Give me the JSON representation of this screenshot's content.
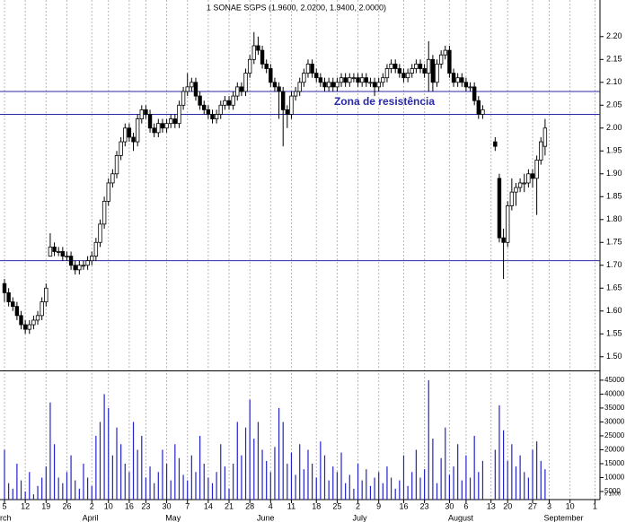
{
  "chart_data": {
    "type": "candlestick",
    "title": "1 SONAE SGPS (1.9600, 2.0200, 1.9400, 2.0000)",
    "annotation": "Zona de resistência",
    "up_color": "#ffffff",
    "down_color": "#000000",
    "volume_color": "#2323c8",
    "hline_color": "#2a2aa8",
    "hlines": [
      2.08,
      2.03,
      1.71
    ],
    "xlim": [
      -1.08,
      143.2
    ],
    "xticks": [
      {
        "value": 0,
        "label": "5"
      },
      {
        "value": 5,
        "label": "12"
      },
      {
        "value": 10,
        "label": "19"
      },
      {
        "value": 15,
        "label": "26"
      },
      {
        "value": 21,
        "label": "2"
      },
      {
        "value": 25,
        "label": "10"
      },
      {
        "value": 30,
        "label": "16"
      },
      {
        "value": 34,
        "label": "23"
      },
      {
        "value": 39,
        "label": "30"
      },
      {
        "value": 44,
        "label": "7"
      },
      {
        "value": 49,
        "label": "14"
      },
      {
        "value": 54,
        "label": "21"
      },
      {
        "value": 59,
        "label": "28"
      },
      {
        "value": 64,
        "label": "4"
      },
      {
        "value": 69,
        "label": "11"
      },
      {
        "value": 75,
        "label": "18"
      },
      {
        "value": 80,
        "label": "25"
      },
      {
        "value": 85,
        "label": "2"
      },
      {
        "value": 90,
        "label": "9"
      },
      {
        "value": 96,
        "label": "16"
      },
      {
        "value": 101,
        "label": "23"
      },
      {
        "value": 107,
        "label": "30"
      },
      {
        "value": 111,
        "label": "6"
      },
      {
        "value": 117,
        "label": "13"
      },
      {
        "value": 121,
        "label": "20"
      },
      {
        "value": 127,
        "label": "27"
      },
      {
        "value": 131,
        "label": "3"
      },
      {
        "value": 136,
        "label": "10"
      },
      {
        "value": 142,
        "label": "1"
      }
    ],
    "months": [
      {
        "value": 0,
        "label": "rch"
      },
      {
        "value": 20,
        "label": "April"
      },
      {
        "value": 40,
        "label": "May"
      },
      {
        "value": 62,
        "label": "June"
      },
      {
        "value": 85,
        "label": "July"
      },
      {
        "value": 108,
        "label": "August"
      },
      {
        "value": 131,
        "label": "September"
      }
    ],
    "ylim": [
      1.475,
      2.28
    ],
    "yticks": [
      {
        "value": 2.2,
        "label": "2.20"
      },
      {
        "value": 2.15,
        "label": "2.15"
      },
      {
        "value": 2.1,
        "label": "2.10"
      },
      {
        "value": 2.05,
        "label": "2.05"
      },
      {
        "value": 2.0,
        "label": "2.00"
      },
      {
        "value": 1.95,
        "label": "1.95"
      },
      {
        "value": 1.9,
        "label": "1.90"
      },
      {
        "value": 1.85,
        "label": "1.85"
      },
      {
        "value": 1.8,
        "label": "1.80"
      },
      {
        "value": 1.75,
        "label": "1.75"
      },
      {
        "value": 1.7,
        "label": "1.70"
      },
      {
        "value": 1.65,
        "label": "1.65"
      },
      {
        "value": 1.6,
        "label": "1.60"
      },
      {
        "value": 1.55,
        "label": "1.55"
      },
      {
        "value": 1.5,
        "label": "1.50"
      }
    ],
    "y2lim": [
      2100,
      46900
    ],
    "y2ticks": [
      45000,
      40000,
      35000,
      30000,
      25000,
      20000,
      15000,
      10000,
      5000
    ],
    "volume_unit": "x 1000",
    "x": [
      0,
      1,
      2,
      3,
      4,
      5,
      6,
      7,
      8,
      9,
      10,
      11,
      12,
      13,
      14,
      15,
      16,
      17,
      18,
      19,
      20,
      21,
      22,
      23,
      24,
      25,
      26,
      27,
      28,
      29,
      30,
      31,
      32,
      33,
      34,
      35,
      36,
      37,
      38,
      39,
      40,
      41,
      42,
      43,
      44,
      45,
      46,
      47,
      48,
      49,
      50,
      51,
      52,
      53,
      54,
      55,
      56,
      57,
      58,
      59,
      60,
      61,
      62,
      63,
      64,
      65,
      66,
      67,
      68,
      69,
      70,
      71,
      72,
      73,
      74,
      75,
      76,
      77,
      78,
      79,
      80,
      81,
      82,
      83,
      84,
      85,
      86,
      87,
      88,
      89,
      90,
      91,
      92,
      93,
      94,
      95,
      96,
      97,
      98,
      99,
      100,
      101,
      102,
      103,
      104,
      105,
      106,
      107,
      108,
      109,
      110,
      111,
      112,
      113,
      114,
      115,
      116,
      117,
      118,
      119,
      120,
      121,
      122,
      123,
      124,
      125,
      126,
      127,
      128,
      129,
      130
    ],
    "candles": [
      [
        1.66,
        1.67,
        1.62,
        1.64
      ],
      [
        1.64,
        1.65,
        1.61,
        1.62
      ],
      [
        1.62,
        1.63,
        1.6,
        1.61
      ],
      [
        1.61,
        1.62,
        1.58,
        1.59
      ],
      [
        1.59,
        1.6,
        1.56,
        1.57
      ],
      [
        1.57,
        1.58,
        1.55,
        1.56
      ],
      [
        1.56,
        1.58,
        1.55,
        1.57
      ],
      [
        1.57,
        1.59,
        1.56,
        1.58
      ],
      [
        1.58,
        1.6,
        1.57,
        1.59
      ],
      [
        1.59,
        1.63,
        1.58,
        1.62
      ],
      [
        1.62,
        1.66,
        1.61,
        1.65
      ],
      [
        1.72,
        1.77,
        1.72,
        1.74
      ],
      [
        1.74,
        1.75,
        1.72,
        1.73
      ],
      [
        1.73,
        1.74,
        1.72,
        1.73
      ],
      [
        1.73,
        1.74,
        1.71,
        1.72
      ],
      [
        1.72,
        1.73,
        1.71,
        1.72
      ],
      [
        1.72,
        1.73,
        1.69,
        1.7
      ],
      [
        1.7,
        1.71,
        1.68,
        1.69
      ],
      [
        1.69,
        1.71,
        1.68,
        1.7
      ],
      [
        1.7,
        1.71,
        1.69,
        1.7
      ],
      [
        1.7,
        1.72,
        1.69,
        1.71
      ],
      [
        1.71,
        1.73,
        1.7,
        1.72
      ],
      [
        1.72,
        1.76,
        1.71,
        1.75
      ],
      [
        1.75,
        1.8,
        1.74,
        1.79
      ],
      [
        1.79,
        1.85,
        1.78,
        1.84
      ],
      [
        1.84,
        1.89,
        1.83,
        1.88
      ],
      [
        1.88,
        1.91,
        1.87,
        1.9
      ],
      [
        1.9,
        1.95,
        1.89,
        1.94
      ],
      [
        1.94,
        1.98,
        1.93,
        1.97
      ],
      [
        1.97,
        2.01,
        1.96,
        2.0
      ],
      [
        2.0,
        2.01,
        1.97,
        1.98
      ],
      [
        1.98,
        1.99,
        1.95,
        1.97
      ],
      [
        1.97,
        2.03,
        1.96,
        2.02
      ],
      [
        2.02,
        2.05,
        2.01,
        2.04
      ],
      [
        2.04,
        2.05,
        2.02,
        2.03
      ],
      [
        2.03,
        2.04,
        1.99,
        2.0
      ],
      [
        2.0,
        2.01,
        1.98,
        1.99
      ],
      [
        1.99,
        2.02,
        1.98,
        2.01
      ],
      [
        2.01,
        2.02,
        1.99,
        2.0
      ],
      [
        2.0,
        2.02,
        1.99,
        2.01
      ],
      [
        2.01,
        2.03,
        2.0,
        2.02
      ],
      [
        2.02,
        2.03,
        2.0,
        2.01
      ],
      [
        2.01,
        2.06,
        2.0,
        2.05
      ],
      [
        2.05,
        2.09,
        2.04,
        2.08
      ],
      [
        2.08,
        2.12,
        2.07,
        2.09
      ],
      [
        2.09,
        2.11,
        2.08,
        2.1
      ],
      [
        2.1,
        2.11,
        2.06,
        2.07
      ],
      [
        2.07,
        2.08,
        2.04,
        2.05
      ],
      [
        2.05,
        2.06,
        2.03,
        2.04
      ],
      [
        2.04,
        2.05,
        2.02,
        2.03
      ],
      [
        2.03,
        2.04,
        2.01,
        2.02
      ],
      [
        2.02,
        2.04,
        2.01,
        2.03
      ],
      [
        2.03,
        2.06,
        2.02,
        2.05
      ],
      [
        2.05,
        2.07,
        2.04,
        2.06
      ],
      [
        2.06,
        2.07,
        2.04,
        2.05
      ],
      [
        2.05,
        2.08,
        2.04,
        2.07
      ],
      [
        2.07,
        2.1,
        2.06,
        2.09
      ],
      [
        2.09,
        2.1,
        2.07,
        2.08
      ],
      [
        2.08,
        2.13,
        2.07,
        2.12
      ],
      [
        2.12,
        2.16,
        2.11,
        2.15
      ],
      [
        2.15,
        2.21,
        2.14,
        2.18
      ],
      [
        2.18,
        2.2,
        2.16,
        2.17
      ],
      [
        2.17,
        2.18,
        2.13,
        2.14
      ],
      [
        2.14,
        2.15,
        2.12,
        2.13
      ],
      [
        2.13,
        2.14,
        2.09,
        2.1
      ],
      [
        2.1,
        2.11,
        2.08,
        2.09
      ],
      [
        2.09,
        2.1,
        2.02,
        2.08
      ],
      [
        2.08,
        2.09,
        1.96,
        2.04
      ],
      [
        2.04,
        2.05,
        2.0,
        2.03
      ],
      [
        2.03,
        2.08,
        2.02,
        2.07
      ],
      [
        2.07,
        2.09,
        2.06,
        2.08
      ],
      [
        2.08,
        2.11,
        2.07,
        2.1
      ],
      [
        2.1,
        2.13,
        2.09,
        2.12
      ],
      [
        2.12,
        2.15,
        2.11,
        2.14
      ],
      [
        2.14,
        2.15,
        2.11,
        2.12
      ],
      [
        2.12,
        2.13,
        2.1,
        2.11
      ],
      [
        2.11,
        2.12,
        2.09,
        2.1
      ],
      [
        2.1,
        2.11,
        2.08,
        2.09
      ],
      [
        2.09,
        2.11,
        2.08,
        2.1
      ],
      [
        2.1,
        2.11,
        2.08,
        2.09
      ],
      [
        2.09,
        2.11,
        2.08,
        2.1
      ],
      [
        2.1,
        2.12,
        2.09,
        2.11
      ],
      [
        2.11,
        2.12,
        2.09,
        2.1
      ],
      [
        2.1,
        2.12,
        2.09,
        2.11
      ],
      [
        2.11,
        2.12,
        2.1,
        2.11
      ],
      [
        2.11,
        2.12,
        2.09,
        2.1
      ],
      [
        2.1,
        2.12,
        2.09,
        2.11
      ],
      [
        2.11,
        2.12,
        2.09,
        2.1
      ],
      [
        2.1,
        2.11,
        2.09,
        2.1
      ],
      [
        2.1,
        2.11,
        2.07,
        2.09
      ],
      [
        2.09,
        2.11,
        2.08,
        2.1
      ],
      [
        2.1,
        2.12,
        2.09,
        2.11
      ],
      [
        2.11,
        2.14,
        2.1,
        2.13
      ],
      [
        2.13,
        2.15,
        2.12,
        2.14
      ],
      [
        2.14,
        2.15,
        2.12,
        2.13
      ],
      [
        2.13,
        2.14,
        2.11,
        2.12
      ],
      [
        2.12,
        2.13,
        2.1,
        2.11
      ],
      [
        2.11,
        2.13,
        2.1,
        2.12
      ],
      [
        2.12,
        2.14,
        2.11,
        2.13
      ],
      [
        2.13,
        2.15,
        2.12,
        2.14
      ],
      [
        2.14,
        2.15,
        2.12,
        2.13
      ],
      [
        2.13,
        2.14,
        2.11,
        2.12
      ],
      [
        2.12,
        2.19,
        2.08,
        2.15
      ],
      [
        2.15,
        2.16,
        2.08,
        2.1
      ],
      [
        2.1,
        2.15,
        2.09,
        2.14
      ],
      [
        2.14,
        2.17,
        2.13,
        2.16
      ],
      [
        2.16,
        2.18,
        2.15,
        2.17
      ],
      [
        2.17,
        2.18,
        2.11,
        2.12
      ],
      [
        2.12,
        2.13,
        2.09,
        2.1
      ],
      [
        2.1,
        2.12,
        2.09,
        2.11
      ],
      [
        2.11,
        2.12,
        2.09,
        2.1
      ],
      [
        2.1,
        2.11,
        2.08,
        2.09
      ],
      [
        2.09,
        2.1,
        2.08,
        2.09
      ],
      [
        2.09,
        2.1,
        2.05,
        2.06
      ],
      [
        2.06,
        2.07,
        2.02,
        2.03
      ],
      [
        2.03,
        2.05,
        2.02,
        2.04
      ],
      null,
      null,
      [
        1.97,
        1.98,
        1.95,
        1.96
      ],
      [
        1.89,
        1.9,
        1.75,
        1.76
      ],
      [
        1.76,
        1.78,
        1.67,
        1.75
      ],
      [
        1.75,
        1.84,
        1.74,
        1.83
      ],
      [
        1.83,
        1.89,
        1.82,
        1.86
      ],
      [
        1.86,
        1.88,
        1.83,
        1.87
      ],
      [
        1.87,
        1.89,
        1.86,
        1.88
      ],
      [
        1.88,
        1.9,
        1.86,
        1.88
      ],
      [
        1.88,
        1.91,
        1.87,
        1.9
      ],
      [
        1.9,
        1.91,
        1.87,
        1.89
      ],
      [
        1.89,
        1.94,
        1.81,
        1.93
      ],
      [
        1.93,
        1.98,
        1.92,
        1.97
      ],
      [
        1.96,
        2.02,
        1.94,
        2.0
      ]
    ],
    "volume": [
      20000,
      8000,
      6000,
      15000,
      9000,
      5000,
      12000,
      4000,
      7000,
      10000,
      14000,
      37000,
      22000,
      10000,
      8000,
      12000,
      18000,
      9000,
      6000,
      15000,
      10000,
      7000,
      25000,
      30000,
      40000,
      35000,
      18000,
      28000,
      22000,
      15000,
      12000,
      30000,
      20000,
      25000,
      10000,
      14000,
      8000,
      12000,
      20000,
      15000,
      9000,
      22000,
      17000,
      11000,
      9000,
      18000,
      12000,
      25000,
      15000,
      10000,
      8000,
      12000,
      22000,
      14000,
      6000,
      15000,
      30000,
      18000,
      28000,
      38000,
      24000,
      30000,
      20000,
      16000,
      12000,
      21000,
      35000,
      30000,
      15000,
      19000,
      11000,
      22000,
      13000,
      20000,
      15000,
      10000,
      23000,
      18000,
      9000,
      14000,
      12000,
      19000,
      8000,
      11000,
      6000,
      15000,
      9000,
      13000,
      7000,
      10000,
      12000,
      8000,
      14000,
      10000,
      6000,
      9000,
      18000,
      7000,
      12000,
      20000,
      10000,
      13000,
      45000,
      24000,
      8000,
      17000,
      28000,
      11000,
      14000,
      22000,
      9000,
      18000,
      10000,
      25000,
      12000,
      16000,
      null,
      null,
      20000,
      36000,
      27000,
      16000,
      22000,
      14000,
      18000,
      12000,
      10000,
      20000,
      23000,
      16000,
      13000
    ]
  }
}
